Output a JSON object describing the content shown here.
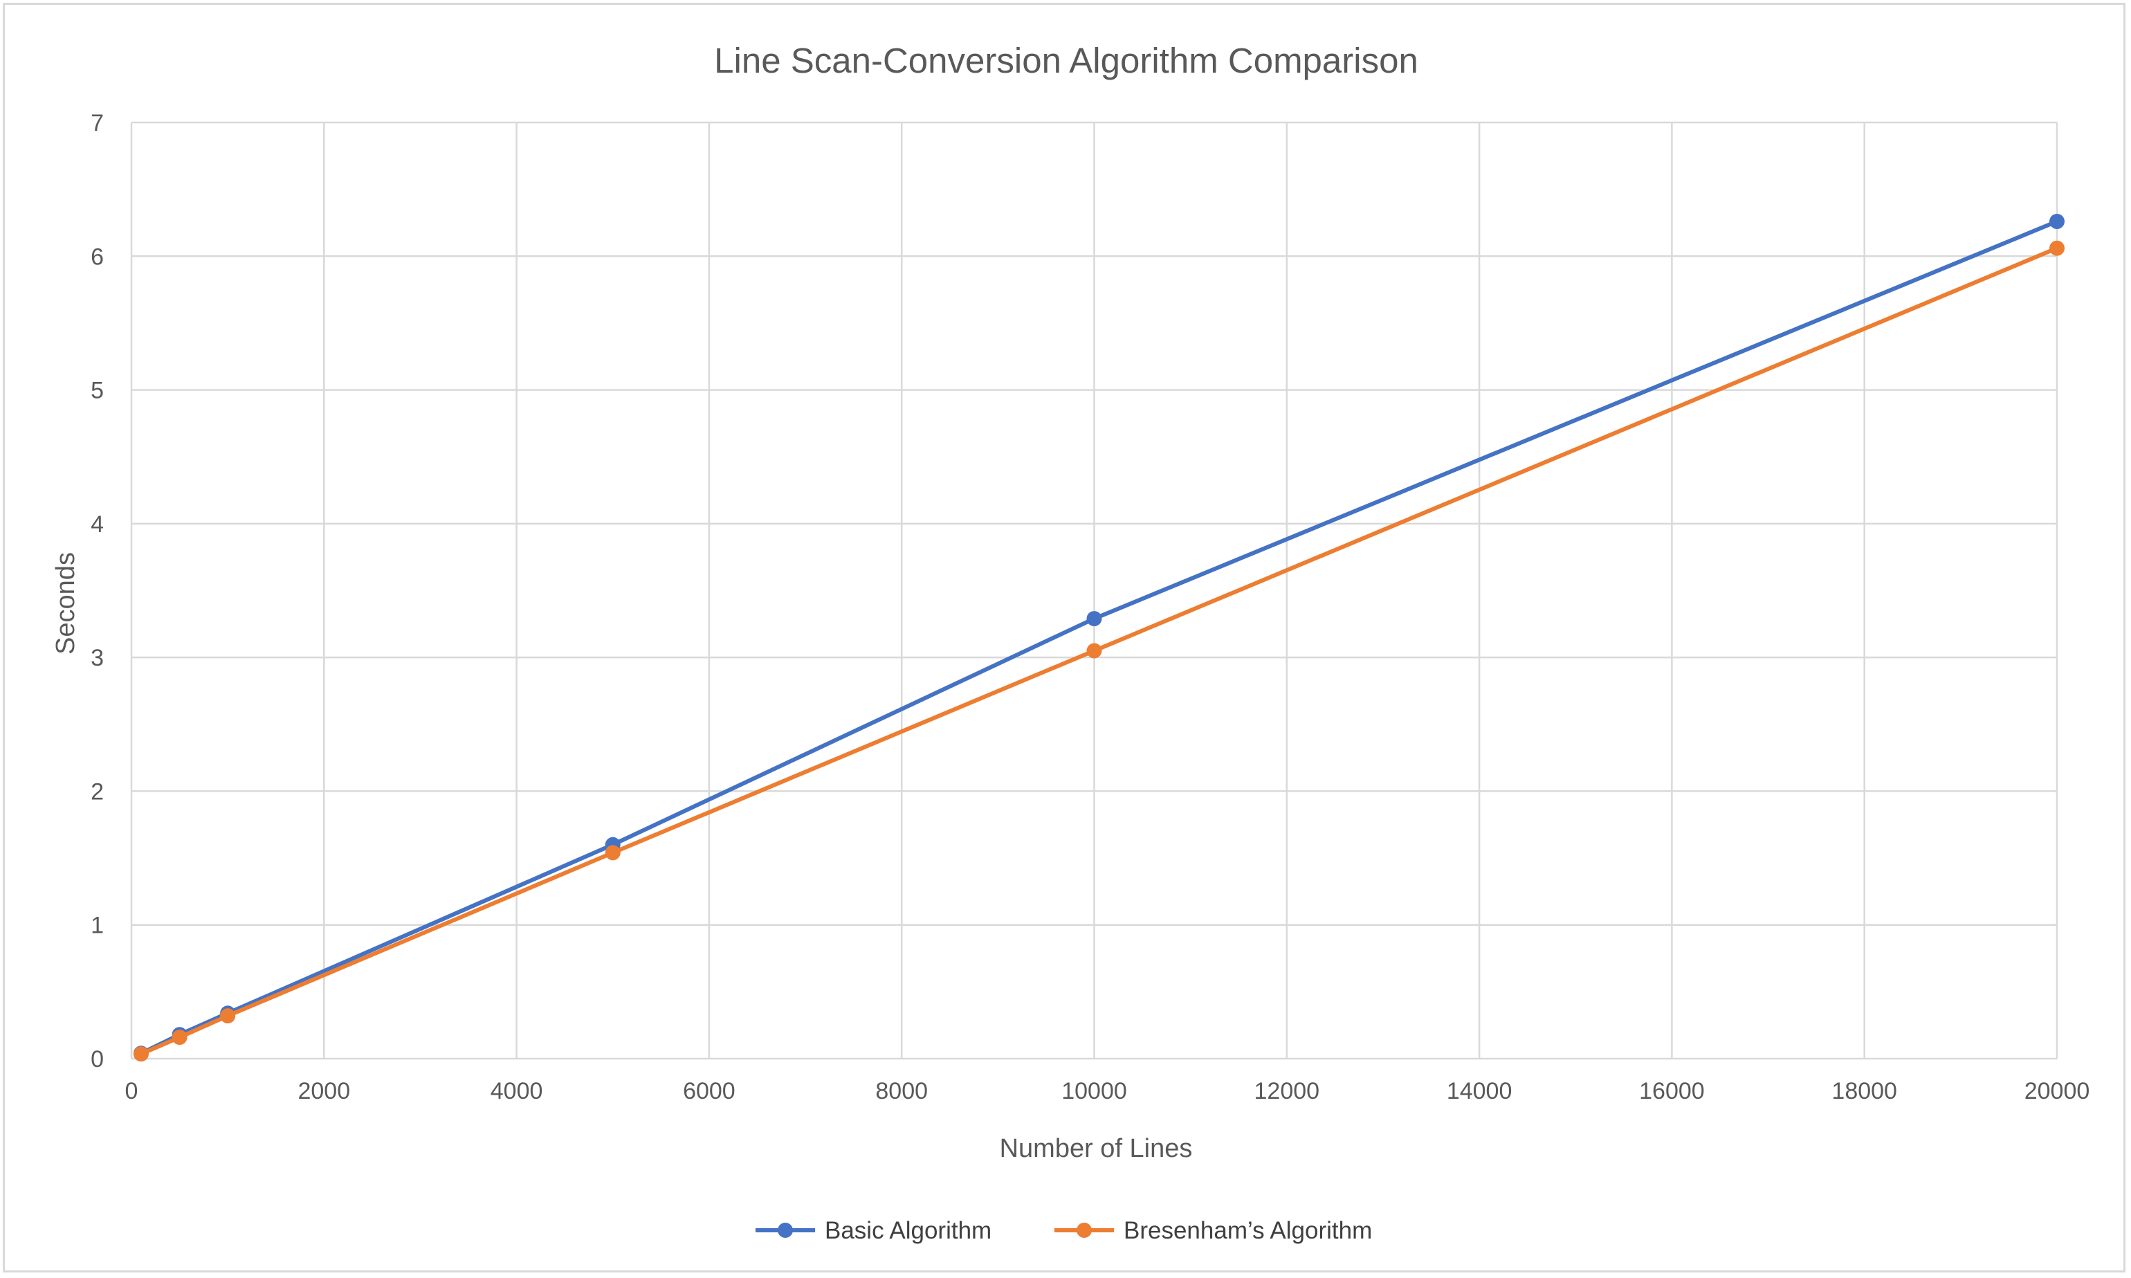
{
  "chart_data": {
    "type": "line",
    "title": "Line Scan-Conversion Algorithm Comparison",
    "xlabel": "Number of Lines",
    "ylabel": "Seconds",
    "xlim": [
      0,
      20000
    ],
    "ylim": [
      0,
      7
    ],
    "x_ticks": [
      "0",
      "2000",
      "4000",
      "6000",
      "8000",
      "10000",
      "12000",
      "14000",
      "16000",
      "18000",
      "20000"
    ],
    "y_ticks": [
      "0",
      "1",
      "2",
      "3",
      "4",
      "5",
      "6",
      "7"
    ],
    "grid": true,
    "legend_position": "bottom",
    "series": [
      {
        "name": "Basic Algorithm",
        "color": "#4472C4",
        "x": [
          100,
          500,
          1000,
          5000,
          10000,
          20000
        ],
        "y": [
          0.04,
          0.18,
          0.34,
          1.6,
          3.29,
          6.26
        ]
      },
      {
        "name": "Bresenham’s Algorithm",
        "color": "#ED7D31",
        "x": [
          100,
          500,
          1000,
          5000,
          10000,
          20000
        ],
        "y": [
          0.035,
          0.16,
          0.32,
          1.54,
          3.05,
          6.06
        ]
      }
    ]
  }
}
